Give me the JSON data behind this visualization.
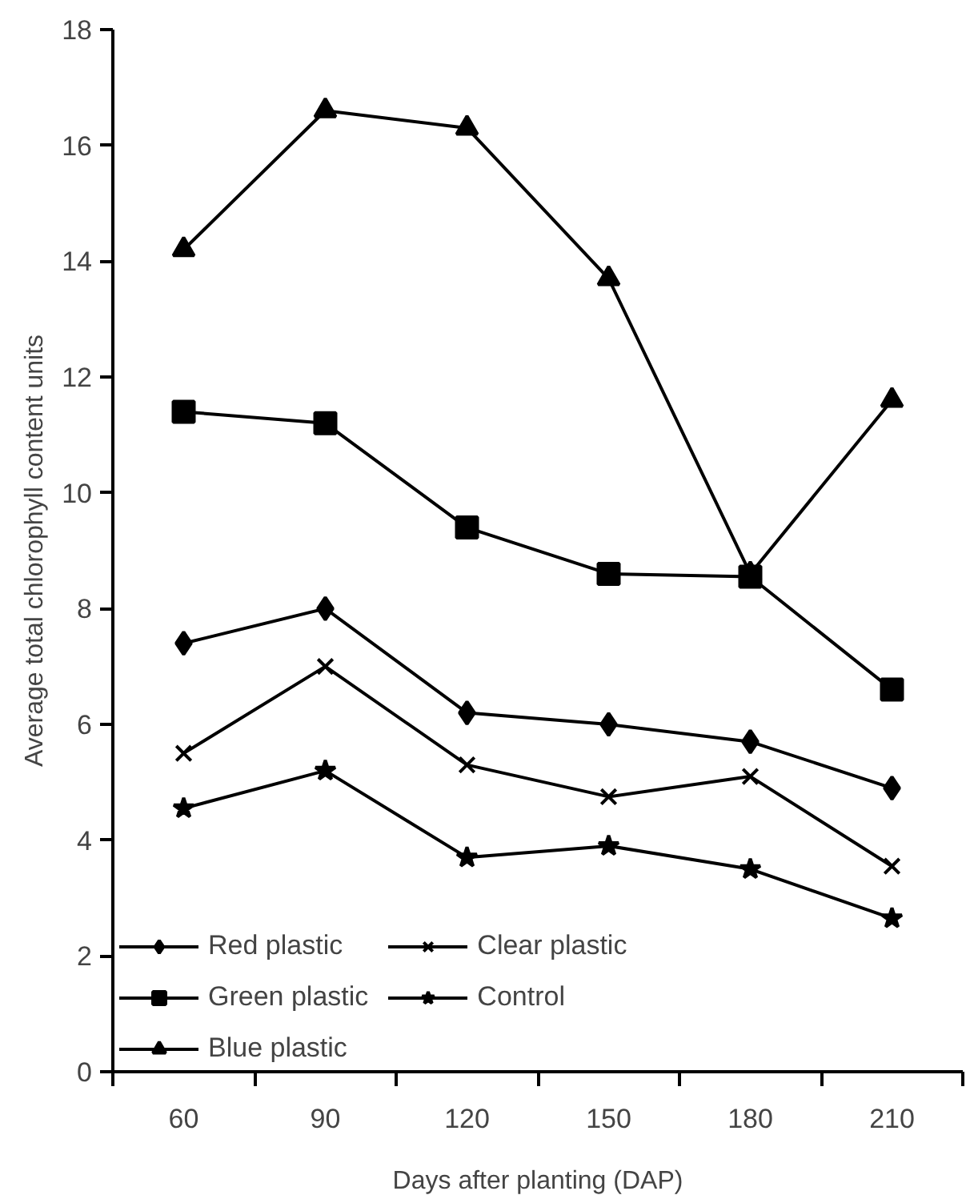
{
  "chart_data": {
    "type": "line",
    "xlabel": "Days after planting (DAP)",
    "ylabel": "Average total chlorophyll content units",
    "categories": [
      "60",
      "90",
      "120",
      "150",
      "180",
      "210"
    ],
    "series": [
      {
        "name": "Red plastic",
        "color": "#000000",
        "marker": "diamond",
        "values": [
          7.4,
          8.0,
          6.2,
          6.0,
          5.7,
          4.9
        ]
      },
      {
        "name": "Green plastic",
        "color": "#000000",
        "marker": "square",
        "values": [
          11.4,
          11.2,
          9.4,
          8.6,
          8.55,
          6.6
        ]
      },
      {
        "name": "Blue plastic",
        "color": "#000000",
        "marker": "triangle",
        "values": [
          14.2,
          16.6,
          16.3,
          13.7,
          8.6,
          11.6
        ]
      },
      {
        "name": "Clear plastic",
        "color": "#000000",
        "marker": "cross",
        "values": [
          5.5,
          7.0,
          5.3,
          4.75,
          5.1,
          3.55
        ]
      },
      {
        "name": "Control",
        "color": "#000000",
        "marker": "star",
        "values": [
          4.55,
          5.2,
          3.7,
          3.9,
          3.5,
          2.65
        ]
      }
    ],
    "ylim": [
      0,
      18
    ],
    "yticks": [
      0,
      2,
      4,
      6,
      8,
      10,
      12,
      14,
      16,
      18
    ],
    "grid": false,
    "legend": "bottom",
    "line_style": "solid"
  }
}
